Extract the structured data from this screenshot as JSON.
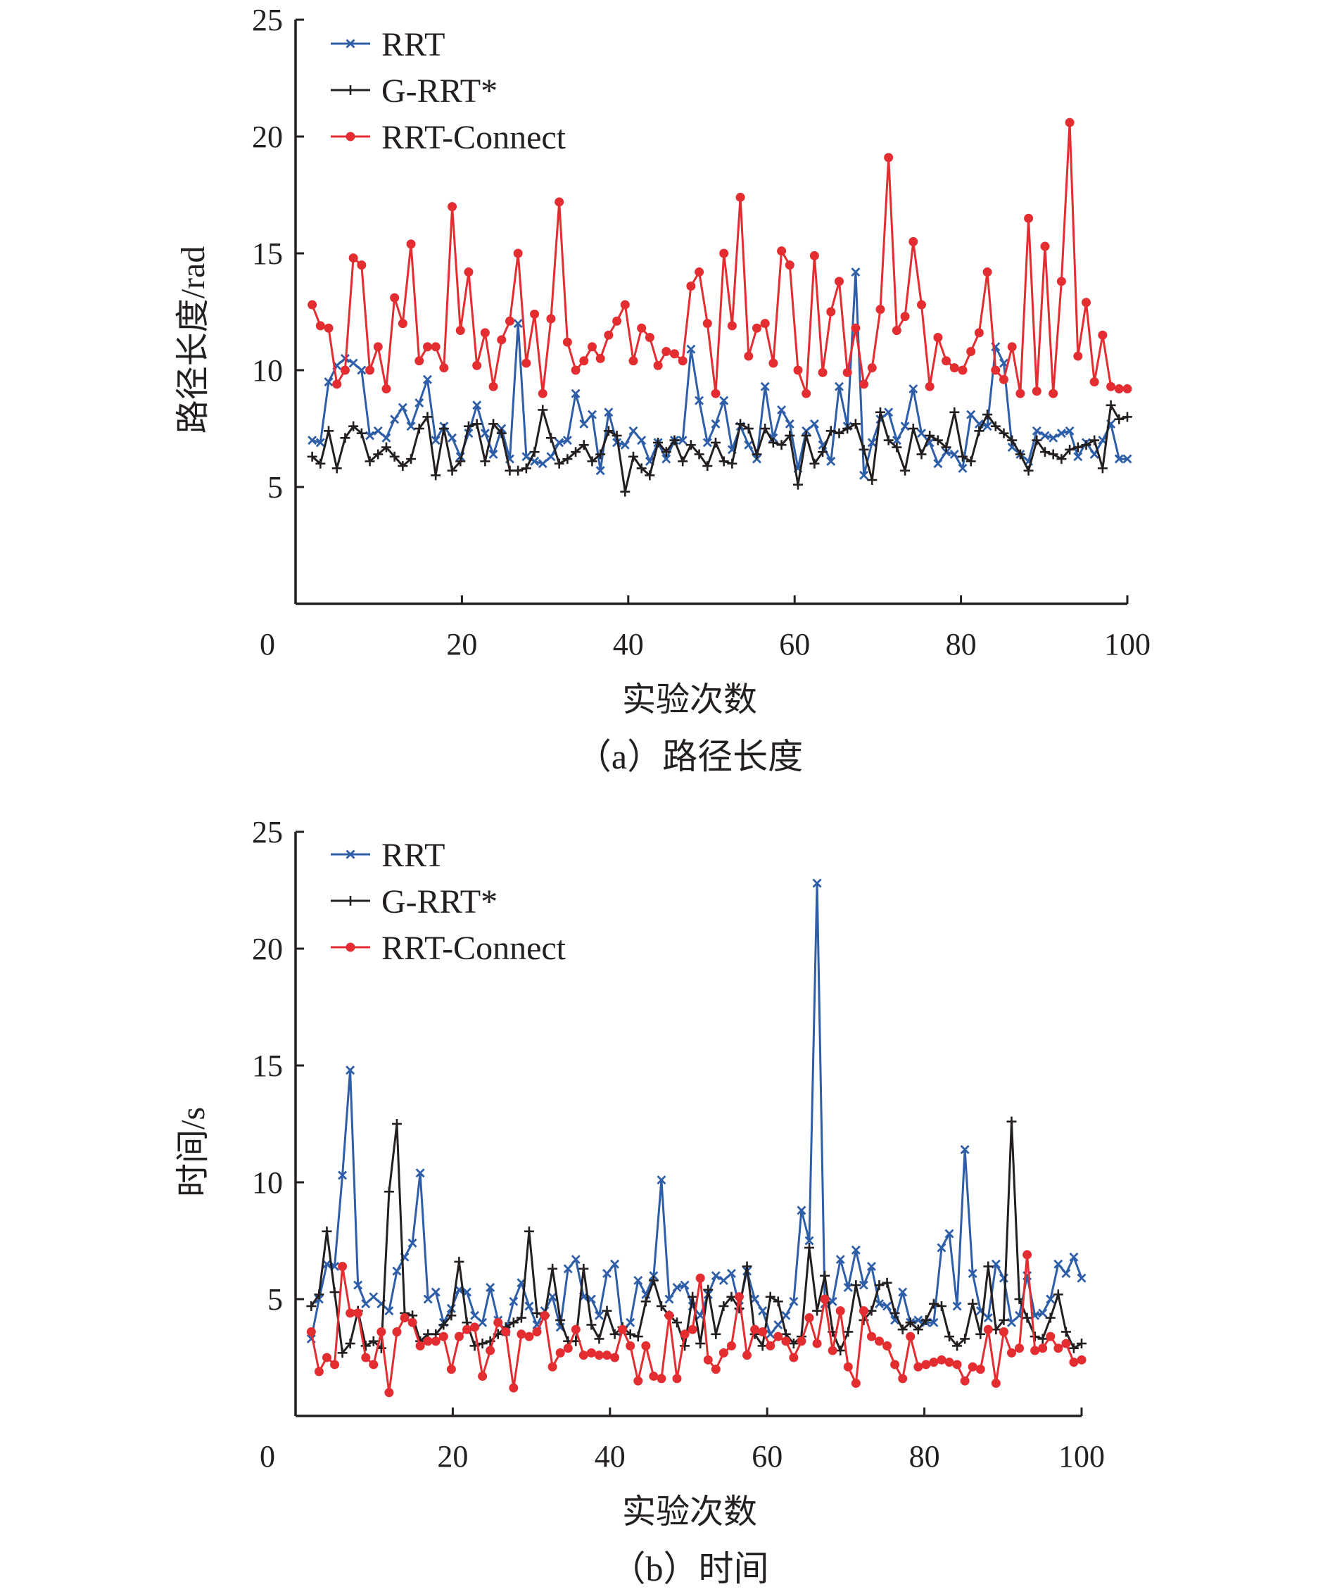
{
  "chart_data": [
    {
      "type": "line",
      "caption": "（a）路径长度",
      "xlabel": "实验次数",
      "ylabel": "路径长度/rad",
      "xlim": [
        0,
        100
      ],
      "ylim": [
        0,
        25
      ],
      "xticks": [
        "0",
        "20",
        "40",
        "60",
        "80",
        "100"
      ],
      "yticks": [
        "5",
        "10",
        "15",
        "20",
        "25"
      ],
      "legend_position": "top-left",
      "grid": false,
      "series": [
        {
          "name": "RRT",
          "color": "#2e5ea8",
          "marker": "x",
          "values": [
            7.0,
            6.9,
            9.5,
            10.2,
            10.5,
            10.3,
            10.0,
            7.2,
            7.4,
            7.1,
            7.9,
            8.4,
            7.6,
            8.6,
            9.6,
            7.0,
            7.6,
            7.1,
            6.3,
            7.3,
            8.5,
            7.3,
            6.4,
            7.5,
            6.2,
            12.0,
            6.3,
            6.1,
            6.0,
            6.3,
            6.9,
            7.0,
            9.0,
            7.7,
            8.1,
            5.7,
            8.2,
            6.9,
            6.8,
            7.4,
            7.0,
            6.1,
            6.9,
            6.2,
            7.0,
            7.0,
            10.9,
            8.7,
            6.9,
            7.7,
            8.7,
            6.6,
            7.6,
            6.8,
            6.2,
            9.3,
            7.1,
            8.3,
            7.7,
            5.8,
            7.4,
            7.7,
            6.8,
            6.1,
            9.3,
            7.6,
            14.2,
            5.5,
            6.9,
            7.9,
            8.2,
            7.0,
            7.6,
            9.2,
            7.3,
            6.9,
            6.0,
            6.5,
            6.4,
            5.8,
            8.1,
            7.7,
            7.6,
            11.0,
            10.3,
            6.7,
            6.4,
            6.1,
            7.4,
            7.2,
            7.1,
            7.3,
            7.4,
            6.3,
            6.9,
            6.4,
            7.0,
            7.7,
            6.2,
            6.2
          ]
        },
        {
          "name": "G-RRT*",
          "color": "#231f20",
          "marker": "plus",
          "values": [
            6.3,
            6.0,
            7.4,
            5.8,
            7.1,
            7.6,
            7.3,
            6.1,
            6.4,
            6.7,
            6.3,
            5.9,
            6.2,
            7.5,
            8.0,
            5.5,
            7.5,
            5.7,
            6.1,
            7.6,
            7.7,
            6.1,
            7.7,
            7.3,
            5.7,
            5.7,
            5.8,
            6.5,
            8.3,
            7.1,
            6.0,
            6.2,
            6.5,
            6.8,
            6.1,
            6.4,
            7.4,
            7.2,
            4.8,
            6.3,
            5.8,
            5.5,
            6.9,
            6.5,
            7.0,
            6.1,
            6.8,
            6.4,
            5.9,
            6.9,
            6.1,
            6.0,
            7.7,
            7.5,
            6.4,
            7.5,
            6.9,
            6.8,
            7.2,
            5.1,
            7.2,
            6.0,
            6.5,
            7.4,
            7.3,
            7.5,
            7.7,
            6.6,
            5.3,
            8.2,
            7.0,
            6.7,
            5.7,
            7.5,
            6.4,
            7.2,
            7.0,
            6.7,
            8.2,
            6.3,
            6.1,
            7.4,
            8.1,
            7.6,
            7.3,
            7.0,
            6.4,
            5.7,
            7.0,
            6.5,
            6.4,
            6.2,
            6.6,
            6.7,
            6.8,
            7.0,
            5.8,
            8.5,
            7.9,
            8.0
          ]
        },
        {
          "name": "RRT-Connect",
          "color": "#e32d31",
          "marker": "dot",
          "values": [
            12.8,
            11.9,
            11.8,
            9.4,
            10.0,
            14.8,
            14.5,
            10.0,
            11.0,
            9.2,
            13.1,
            12.0,
            15.4,
            10.4,
            11.0,
            11.0,
            10.1,
            17.0,
            11.7,
            14.2,
            10.2,
            11.6,
            9.3,
            11.3,
            12.1,
            15.0,
            10.3,
            12.4,
            9.0,
            12.2,
            17.2,
            11.2,
            10.0,
            10.4,
            11.0,
            10.5,
            11.5,
            12.1,
            12.8,
            10.4,
            11.8,
            11.4,
            10.2,
            10.8,
            10.7,
            10.4,
            13.6,
            14.2,
            12.0,
            9.0,
            15.0,
            11.9,
            17.4,
            10.6,
            11.8,
            12.0,
            10.3,
            15.1,
            14.5,
            10.0,
            9.0,
            14.9,
            9.9,
            12.5,
            13.8,
            9.9,
            11.8,
            9.4,
            10.1,
            12.6,
            19.1,
            11.7,
            12.3,
            15.5,
            12.8,
            9.3,
            11.4,
            10.4,
            10.1,
            10.0,
            10.8,
            11.6,
            14.2,
            10.0,
            9.6,
            11.0,
            9.0,
            16.5,
            9.1,
            15.3,
            9.0,
            13.8,
            20.6,
            10.6,
            12.9,
            9.5,
            11.5,
            9.3,
            9.2,
            9.2
          ]
        }
      ]
    },
    {
      "type": "line",
      "caption": "（b）时间",
      "xlabel": "实验次数",
      "ylabel": "时间/s",
      "xlim": [
        0,
        100
      ],
      "ylim": [
        0,
        25
      ],
      "xticks": [
        "0",
        "20",
        "40",
        "60",
        "80",
        "100"
      ],
      "yticks": [
        "5",
        "10",
        "15",
        "20",
        "25"
      ],
      "legend_position": "top-left",
      "grid": false,
      "series": [
        {
          "name": "RRT",
          "color": "#2e5ea8",
          "marker": "x",
          "values": [
            3.3,
            5.0,
            6.5,
            6.4,
            10.3,
            14.8,
            5.6,
            4.8,
            5.1,
            4.8,
            4.5,
            6.2,
            6.8,
            7.4,
            10.4,
            5.0,
            5.3,
            4.0,
            4.6,
            5.4,
            5.3,
            4.3,
            4.0,
            5.5,
            4.1,
            3.6,
            4.9,
            5.7,
            4.7,
            3.9,
            4.5,
            5.1,
            3.8,
            6.3,
            6.7,
            5.1,
            5.0,
            4.3,
            6.1,
            6.5,
            3.6,
            4.0,
            5.8,
            5.2,
            6.0,
            10.1,
            5.0,
            5.5,
            5.6,
            4.7,
            4.3,
            5.2,
            6.0,
            5.8,
            6.1,
            4.7,
            6.2,
            5.0,
            4.5,
            3.5,
            3.9,
            4.3,
            4.9,
            8.8,
            7.5,
            22.8,
            4.8,
            4.9,
            6.7,
            5.5,
            7.1,
            5.6,
            6.4,
            4.8,
            4.7,
            4.1,
            5.3,
            4.0,
            4.1,
            4.0,
            4.0,
            7.2,
            7.8,
            4.7,
            11.4,
            6.1,
            4.5,
            4.2,
            6.5,
            5.9,
            4.0,
            4.3,
            6.0,
            4.3,
            4.4,
            5.0,
            6.5,
            6.1,
            6.8,
            5.9
          ]
        },
        {
          "name": "G-RRT*",
          "color": "#231f20",
          "marker": "plus",
          "values": [
            4.7,
            5.2,
            7.9,
            5.3,
            2.7,
            3.1,
            4.5,
            3.0,
            3.2,
            2.9,
            9.6,
            12.5,
            4.4,
            4.3,
            3.2,
            3.5,
            3.5,
            3.9,
            4.3,
            6.6,
            4.0,
            3.0,
            3.1,
            3.2,
            3.5,
            3.8,
            4.0,
            4.2,
            7.9,
            4.4,
            4.3,
            6.3,
            4.1,
            3.2,
            3.2,
            6.3,
            3.9,
            3.3,
            4.5,
            3.5,
            3.8,
            3.5,
            3.4,
            4.9,
            5.8,
            4.7,
            4.3,
            4.0,
            3.0,
            5.1,
            3.1,
            5.4,
            3.5,
            4.7,
            5.1,
            4.6,
            6.4,
            3.5,
            3.0,
            5.1,
            4.9,
            3.5,
            3.1,
            3.4,
            7.2,
            4.5,
            6.0,
            3.6,
            2.8,
            3.6,
            5.6,
            4.1,
            4.5,
            5.6,
            5.7,
            4.4,
            3.7,
            4.0,
            3.7,
            4.1,
            4.8,
            4.7,
            3.4,
            3.0,
            3.3,
            4.8,
            3.5,
            6.4,
            3.7,
            4.1,
            12.6,
            5.0,
            4.2,
            3.4,
            3.3,
            4.2,
            5.2,
            3.6,
            2.9,
            3.1
          ]
        },
        {
          "name": "RRT-Connect",
          "color": "#e32d31",
          "marker": "dot",
          "values": [
            3.6,
            1.9,
            2.5,
            2.2,
            6.4,
            4.4,
            4.4,
            2.5,
            2.2,
            3.6,
            1.0,
            3.6,
            4.2,
            4.0,
            3.0,
            3.2,
            3.2,
            3.4,
            2.0,
            3.4,
            3.7,
            3.8,
            1.7,
            2.8,
            4.0,
            3.6,
            1.2,
            3.5,
            3.4,
            3.6,
            4.3,
            2.1,
            2.7,
            2.9,
            3.7,
            2.6,
            2.7,
            2.6,
            2.6,
            2.5,
            3.7,
            3.0,
            1.5,
            3.0,
            1.7,
            1.6,
            4.3,
            1.6,
            3.5,
            3.7,
            5.9,
            2.4,
            2.0,
            2.7,
            3.0,
            5.1,
            2.6,
            3.7,
            3.6,
            3.0,
            3.4,
            3.2,
            2.5,
            3.2,
            4.2,
            3.1,
            5.0,
            2.8,
            4.5,
            2.1,
            1.4,
            4.5,
            3.4,
            3.2,
            3.0,
            2.2,
            1.6,
            3.4,
            2.1,
            2.2,
            2.3,
            2.4,
            2.3,
            2.2,
            1.5,
            2.1,
            2.0,
            3.7,
            1.4,
            3.6,
            2.7,
            2.9,
            6.9,
            2.8,
            2.9,
            3.4,
            2.9,
            3.1,
            2.3,
            2.4
          ]
        }
      ]
    }
  ]
}
